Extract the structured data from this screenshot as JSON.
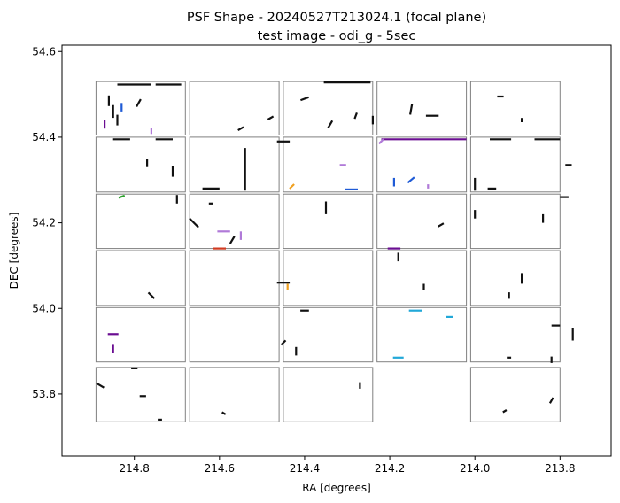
{
  "chart_data": {
    "type": "scatter",
    "title": "PSF Shape - 20240527T213024.1 (focal plane)",
    "subtitle": "test image - odi_g - 5sec",
    "xlabel": "RA [degrees]",
    "ylabel": "DEC [degrees]",
    "xlim": [
      214.97,
      213.68
    ],
    "ylim": [
      53.655,
      54.615
    ],
    "x_inverted": true,
    "xticks": [
      214.8,
      214.6,
      214.4,
      214.2,
      214.0,
      213.8
    ],
    "xtick_labels": [
      "214.8",
      "214.6",
      "214.4",
      "214.2",
      "214.0",
      "213.8"
    ],
    "yticks": [
      53.8,
      54.0,
      54.2,
      54.4,
      54.6
    ],
    "ytick_labels": [
      "53.8",
      "54.0",
      "54.2",
      "54.4",
      "54.6"
    ],
    "grid": false,
    "colors": {
      "outline": "#808080",
      "black": "#111111",
      "purple": "#6a0d91",
      "violet": "#b07ad8",
      "blue": "#1f5bd6",
      "cyan": "#22a8d8",
      "green": "#2aa02a",
      "orange": "#f0a020",
      "red": "#d03a20",
      "yellow": "#e0c000"
    },
    "ccd_columns_ra": [
      [
        214.89,
        214.68
      ],
      [
        214.67,
        214.46
      ],
      [
        214.45,
        214.24
      ],
      [
        214.23,
        214.02
      ],
      [
        214.01,
        213.8
      ]
    ],
    "ccd_rows_dec": [
      [
        54.405,
        54.53
      ],
      [
        54.272,
        54.4
      ],
      [
        54.14,
        54.267
      ],
      [
        54.007,
        54.135
      ],
      [
        53.875,
        54.002
      ],
      [
        53.735,
        53.862
      ]
    ],
    "missing_ccd": [
      5,
      3
    ],
    "psf_whiskers": [
      {
        "ra": 214.86,
        "dec": 54.485,
        "angle": 90,
        "len": 0.025,
        "color": "black"
      },
      {
        "ra": 214.85,
        "dec": 54.46,
        "angle": 90,
        "len": 0.03,
        "color": "black"
      },
      {
        "ra": 214.84,
        "dec": 54.44,
        "angle": 90,
        "len": 0.025,
        "color": "black"
      },
      {
        "ra": 214.87,
        "dec": 54.43,
        "angle": 90,
        "len": 0.02,
        "color": "purple"
      },
      {
        "ra": 214.83,
        "dec": 54.47,
        "angle": 90,
        "len": 0.02,
        "color": "blue"
      },
      {
        "ra": 214.8,
        "dec": 54.523,
        "angle": 0,
        "len": 0.08,
        "color": "black"
      },
      {
        "ra": 214.72,
        "dec": 54.523,
        "angle": 0,
        "len": 0.06,
        "color": "black"
      },
      {
        "ra": 214.79,
        "dec": 54.48,
        "angle": 60,
        "len": 0.02,
        "color": "black"
      },
      {
        "ra": 214.76,
        "dec": 54.415,
        "angle": 90,
        "len": 0.015,
        "color": "violet"
      },
      {
        "ra": 214.83,
        "dec": 54.395,
        "angle": 0,
        "len": 0.04,
        "color": "black"
      },
      {
        "ra": 214.73,
        "dec": 54.395,
        "angle": 0,
        "len": 0.04,
        "color": "black"
      },
      {
        "ra": 214.55,
        "dec": 54.42,
        "angle": 30,
        "len": 0.015,
        "color": "black"
      },
      {
        "ra": 214.48,
        "dec": 54.445,
        "angle": 30,
        "len": 0.015,
        "color": "black"
      },
      {
        "ra": 214.4,
        "dec": 54.49,
        "angle": 20,
        "len": 0.02,
        "color": "black"
      },
      {
        "ra": 214.3,
        "dec": 54.528,
        "angle": 0,
        "len": 0.11,
        "color": "black"
      },
      {
        "ra": 214.34,
        "dec": 54.43,
        "angle": 60,
        "len": 0.02,
        "color": "black"
      },
      {
        "ra": 214.28,
        "dec": 54.45,
        "angle": 70,
        "len": 0.015,
        "color": "black"
      },
      {
        "ra": 214.24,
        "dec": 54.44,
        "angle": 90,
        "len": 0.02,
        "color": "black"
      },
      {
        "ra": 214.15,
        "dec": 54.465,
        "angle": 80,
        "len": 0.025,
        "color": "black"
      },
      {
        "ra": 214.1,
        "dec": 54.45,
        "angle": 0,
        "len": 0.03,
        "color": "black"
      },
      {
        "ra": 213.94,
        "dec": 54.495,
        "angle": 0,
        "len": 0.015,
        "color": "black"
      },
      {
        "ra": 213.89,
        "dec": 54.44,
        "angle": 90,
        "len": 0.01,
        "color": "black"
      },
      {
        "ra": 214.12,
        "dec": 54.395,
        "angle": 0,
        "len": 0.2,
        "color": "purple"
      },
      {
        "ra": 214.22,
        "dec": 54.39,
        "angle": 45,
        "len": 0.015,
        "color": "violet"
      },
      {
        "ra": 213.94,
        "dec": 54.395,
        "angle": 0,
        "len": 0.05,
        "color": "black"
      },
      {
        "ra": 213.83,
        "dec": 54.395,
        "angle": 0,
        "len": 0.06,
        "color": "black"
      },
      {
        "ra": 214.54,
        "dec": 54.325,
        "angle": 90,
        "len": 0.1,
        "color": "black"
      },
      {
        "ra": 214.62,
        "dec": 54.28,
        "angle": 0,
        "len": 0.04,
        "color": "black"
      },
      {
        "ra": 214.45,
        "dec": 54.39,
        "angle": 0,
        "len": 0.03,
        "color": "black"
      },
      {
        "ra": 214.43,
        "dec": 54.285,
        "angle": 45,
        "len": 0.015,
        "color": "orange"
      },
      {
        "ra": 214.29,
        "dec": 54.278,
        "angle": 0,
        "len": 0.03,
        "color": "blue"
      },
      {
        "ra": 214.31,
        "dec": 54.335,
        "angle": 0,
        "len": 0.015,
        "color": "violet"
      },
      {
        "ra": 214.15,
        "dec": 54.3,
        "angle": 40,
        "len": 0.02,
        "color": "blue"
      },
      {
        "ra": 214.19,
        "dec": 54.295,
        "angle": 90,
        "len": 0.02,
        "color": "blue"
      },
      {
        "ra": 214.11,
        "dec": 54.285,
        "angle": 90,
        "len": 0.01,
        "color": "violet"
      },
      {
        "ra": 214.0,
        "dec": 54.29,
        "angle": 90,
        "len": 0.03,
        "color": "black"
      },
      {
        "ra": 213.96,
        "dec": 54.28,
        "angle": 0,
        "len": 0.02,
        "color": "black"
      },
      {
        "ra": 213.79,
        "dec": 54.26,
        "angle": 0,
        "len": 0.02,
        "color": "black"
      },
      {
        "ra": 213.78,
        "dec": 54.335,
        "angle": 0,
        "len": 0.015,
        "color": "black"
      },
      {
        "ra": 214.77,
        "dec": 54.34,
        "angle": 90,
        "len": 0.02,
        "color": "black"
      },
      {
        "ra": 214.71,
        "dec": 54.32,
        "angle": 90,
        "len": 0.025,
        "color": "black"
      },
      {
        "ra": 214.83,
        "dec": 54.261,
        "angle": 20,
        "len": 0.015,
        "color": "green"
      },
      {
        "ra": 214.7,
        "dec": 54.255,
        "angle": 90,
        "len": 0.02,
        "color": "black"
      },
      {
        "ra": 214.62,
        "dec": 54.245,
        "angle": 0,
        "len": 0.01,
        "color": "black"
      },
      {
        "ra": 214.66,
        "dec": 54.2,
        "angle": -45,
        "len": 0.03,
        "color": "black"
      },
      {
        "ra": 214.59,
        "dec": 54.18,
        "angle": 0,
        "len": 0.03,
        "color": "violet"
      },
      {
        "ra": 214.55,
        "dec": 54.17,
        "angle": 90,
        "len": 0.02,
        "color": "violet"
      },
      {
        "ra": 214.6,
        "dec": 54.14,
        "angle": 0,
        "len": 0.03,
        "color": "red"
      },
      {
        "ra": 214.57,
        "dec": 54.16,
        "angle": 60,
        "len": 0.02,
        "color": "black"
      },
      {
        "ra": 214.35,
        "dec": 54.235,
        "angle": 90,
        "len": 0.03,
        "color": "black"
      },
      {
        "ra": 214.19,
        "dec": 54.14,
        "angle": 0,
        "len": 0.03,
        "color": "purple"
      },
      {
        "ra": 214.08,
        "dec": 54.195,
        "angle": 30,
        "len": 0.015,
        "color": "black"
      },
      {
        "ra": 214.0,
        "dec": 54.22,
        "angle": 90,
        "len": 0.02,
        "color": "black"
      },
      {
        "ra": 213.84,
        "dec": 54.21,
        "angle": 90,
        "len": 0.02,
        "color": "black"
      },
      {
        "ra": 214.76,
        "dec": 54.03,
        "angle": -45,
        "len": 0.02,
        "color": "black"
      },
      {
        "ra": 214.45,
        "dec": 54.06,
        "angle": 0,
        "len": 0.03,
        "color": "black"
      },
      {
        "ra": 214.44,
        "dec": 54.05,
        "angle": 90,
        "len": 0.015,
        "color": "orange"
      },
      {
        "ra": 214.18,
        "dec": 54.12,
        "angle": 90,
        "len": 0.02,
        "color": "black"
      },
      {
        "ra": 214.12,
        "dec": 54.05,
        "angle": 90,
        "len": 0.015,
        "color": "black"
      },
      {
        "ra": 213.89,
        "dec": 54.07,
        "angle": 90,
        "len": 0.025,
        "color": "black"
      },
      {
        "ra": 213.92,
        "dec": 54.03,
        "angle": 90,
        "len": 0.015,
        "color": "black"
      },
      {
        "ra": 214.4,
        "dec": 53.995,
        "angle": 0,
        "len": 0.02,
        "color": "black"
      },
      {
        "ra": 214.14,
        "dec": 53.995,
        "angle": 0,
        "len": 0.03,
        "color": "cyan"
      },
      {
        "ra": 214.06,
        "dec": 53.98,
        "angle": 0,
        "len": 0.015,
        "color": "cyan"
      },
      {
        "ra": 213.81,
        "dec": 53.96,
        "angle": 0,
        "len": 0.02,
        "color": "black"
      },
      {
        "ra": 213.77,
        "dec": 53.94,
        "angle": 90,
        "len": 0.03,
        "color": "black"
      },
      {
        "ra": 214.85,
        "dec": 53.94,
        "angle": 0,
        "len": 0.025,
        "color": "purple"
      },
      {
        "ra": 214.85,
        "dec": 53.905,
        "angle": 90,
        "len": 0.02,
        "color": "purple"
      },
      {
        "ra": 214.45,
        "dec": 53.92,
        "angle": 45,
        "len": 0.015,
        "color": "black"
      },
      {
        "ra": 214.42,
        "dec": 53.9,
        "angle": 90,
        "len": 0.02,
        "color": "black"
      },
      {
        "ra": 214.18,
        "dec": 53.885,
        "angle": 0,
        "len": 0.025,
        "color": "cyan"
      },
      {
        "ra": 213.92,
        "dec": 53.885,
        "angle": 0,
        "len": 0.01,
        "color": "black"
      },
      {
        "ra": 213.82,
        "dec": 53.88,
        "angle": 90,
        "len": 0.015,
        "color": "black"
      },
      {
        "ra": 214.88,
        "dec": 53.82,
        "angle": -30,
        "len": 0.02,
        "color": "black"
      },
      {
        "ra": 214.8,
        "dec": 53.86,
        "angle": 0,
        "len": 0.015,
        "color": "black"
      },
      {
        "ra": 214.78,
        "dec": 53.795,
        "angle": 0,
        "len": 0.015,
        "color": "black"
      },
      {
        "ra": 214.74,
        "dec": 53.74,
        "angle": 0,
        "len": 0.01,
        "color": "black"
      },
      {
        "ra": 214.27,
        "dec": 53.82,
        "angle": 90,
        "len": 0.015,
        "color": "black"
      },
      {
        "ra": 213.93,
        "dec": 53.76,
        "angle": 30,
        "len": 0.01,
        "color": "black"
      },
      {
        "ra": 213.82,
        "dec": 53.785,
        "angle": 60,
        "len": 0.015,
        "color": "black"
      },
      {
        "ra": 214.59,
        "dec": 53.755,
        "angle": -30,
        "len": 0.01,
        "color": "black"
      }
    ]
  }
}
